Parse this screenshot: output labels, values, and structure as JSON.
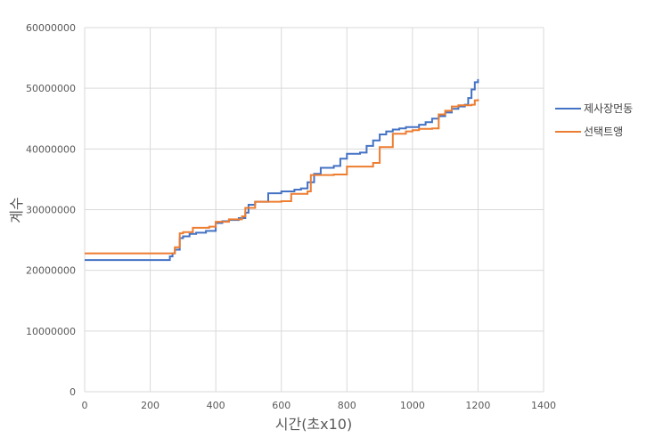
{
  "chart_data": {
    "type": "line",
    "title": "",
    "xlabel": "시간(초x10)",
    "ylabel": "계수",
    "xlim": [
      0,
      1400
    ],
    "ylim": [
      0,
      60000000
    ],
    "xticks": [
      0,
      200,
      400,
      600,
      800,
      1000,
      1200,
      1400
    ],
    "yticks": [
      0,
      10000000,
      20000000,
      30000000,
      40000000,
      50000000,
      60000000
    ],
    "xtick_labels": [
      "0",
      "200",
      "400",
      "600",
      "800",
      "1000",
      "1200",
      "1400"
    ],
    "ytick_labels": [
      "0",
      "10000000",
      "20000000",
      "30000000",
      "40000000",
      "50000000",
      "60000000"
    ],
    "grid": true,
    "legend_position": "right",
    "series": [
      {
        "name": "제사장먼동",
        "color": "#4472C4",
        "x": [
          0,
          255,
          260,
          268,
          275,
          290,
          300,
          320,
          340,
          370,
          400,
          420,
          440,
          470,
          490,
          500,
          520,
          560,
          600,
          640,
          660,
          680,
          700,
          720,
          760,
          780,
          800,
          840,
          860,
          880,
          900,
          920,
          940,
          960,
          980,
          1020,
          1040,
          1060,
          1080,
          1100,
          1120,
          1140,
          1160,
          1170,
          1180,
          1190,
          1200
        ],
        "y": [
          21700000,
          21700000,
          22300000,
          22800000,
          23400000,
          25300000,
          25600000,
          26000000,
          26200000,
          26500000,
          27800000,
          28100000,
          28300000,
          28600000,
          29500000,
          30800000,
          31300000,
          32700000,
          33000000,
          33300000,
          33500000,
          34500000,
          35900000,
          36900000,
          37200000,
          38400000,
          39200000,
          39400000,
          40500000,
          41400000,
          42400000,
          42900000,
          43200000,
          43400000,
          43600000,
          44000000,
          44400000,
          45000000,
          45400000,
          46000000,
          46600000,
          47000000,
          47300000,
          48400000,
          49800000,
          51000000,
          51500000
        ]
      },
      {
        "name": "선택트앵",
        "color": "#ED7D31",
        "x": [
          0,
          260,
          275,
          290,
          300,
          330,
          380,
          400,
          440,
          480,
          490,
          520,
          600,
          630,
          680,
          690,
          760,
          800,
          880,
          900,
          940,
          980,
          1000,
          1020,
          1060,
          1080,
          1100,
          1120,
          1140,
          1180,
          1190,
          1200
        ],
        "y": [
          22800000,
          22800000,
          23800000,
          26100000,
          26300000,
          27000000,
          27200000,
          28000000,
          28400000,
          28900000,
          30300000,
          31300000,
          31400000,
          32600000,
          33000000,
          35700000,
          35800000,
          37100000,
          37700000,
          40300000,
          42500000,
          42900000,
          43100000,
          43300000,
          43400000,
          45700000,
          46300000,
          47000000,
          47200000,
          47300000,
          48000000,
          48200000
        ]
      }
    ]
  }
}
